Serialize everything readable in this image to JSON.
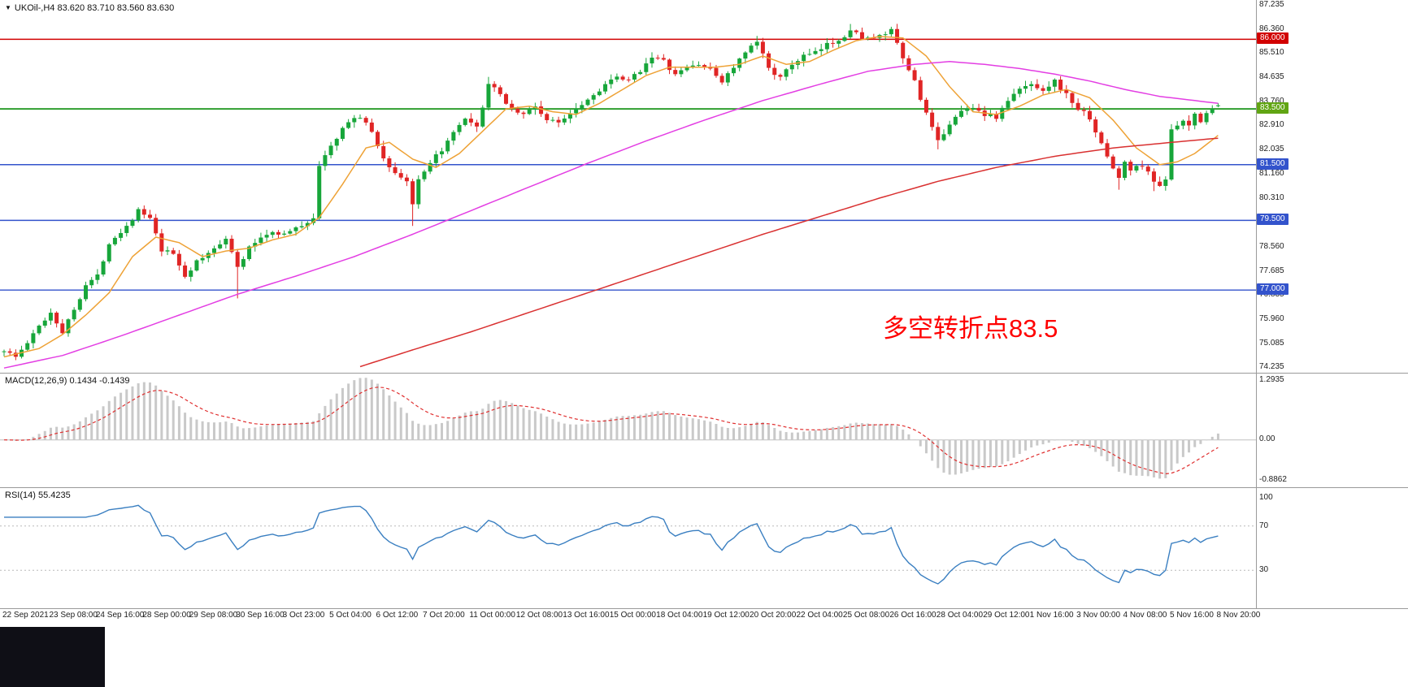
{
  "header": {
    "collapse_icon": "▼",
    "symbol_line": "UKOil-,H4 83.620 83.710 83.560 83.630"
  },
  "main_chart": {
    "price_ticks": [
      "87.235",
      "86.360",
      "85.510",
      "84.635",
      "83.760",
      "82.910",
      "82.035",
      "81.160",
      "80.310",
      "78.560",
      "77.685",
      "76.835",
      "75.960",
      "75.085",
      "74.235"
    ],
    "annotation": {
      "text": "多空转折点83.5",
      "color": "#ff0000"
    }
  },
  "macd_panel": {
    "label": "MACD(12,26,9) 0.1434 -0.1439",
    "axis_labels": [
      "1.2935",
      "0.00",
      "-0.8862"
    ]
  },
  "rsi_panel": {
    "label": "RSI(14) 55.4235",
    "axis_labels": [
      "100",
      "70",
      "30"
    ]
  },
  "time_axis": {
    "labels": [
      "22 Sep 2021",
      "23 Sep 08:00",
      "24 Sep 16:00",
      "28 Sep 00:00",
      "29 Sep 08:00",
      "30 Sep 16:00",
      "3 Oct 23:00",
      "5 Oct 04:00",
      "6 Oct 12:00",
      "7 Oct 20:00",
      "11 Oct 00:00",
      "12 Oct 08:00",
      "13 Oct 16:00",
      "15 Oct 00:00",
      "18 Oct 04:00",
      "19 Oct 12:00",
      "20 Oct 20:00",
      "22 Oct 04:00",
      "25 Oct 08:00",
      "26 Oct 16:00",
      "28 Oct 04:00",
      "29 Oct 12:00",
      "1 Nov 16:00",
      "3 Nov 00:00",
      "4 Nov 08:00",
      "5 Nov 16:00",
      "8 Nov 20:00"
    ]
  },
  "chart_data": {
    "type": "candlestick",
    "symbol": "UKOil-",
    "timeframe": "H4",
    "ohlc_current": {
      "open": 83.62,
      "high": 83.71,
      "low": 83.56,
      "close": 83.63
    },
    "price_range": [
      74.235,
      87.235
    ],
    "candle_count": 209,
    "bars_per_time_label": 8,
    "price_path_anchors": [
      [
        0,
        74.85
      ],
      [
        2,
        74.6
      ],
      [
        4,
        75.1
      ],
      [
        6,
        75.7
      ],
      [
        8,
        76.2
      ],
      [
        10,
        75.5
      ],
      [
        12,
        76.3
      ],
      [
        14,
        77.2
      ],
      [
        16,
        77.5
      ],
      [
        18,
        78.7
      ],
      [
        21,
        79.3
      ],
      [
        23,
        79.85
      ],
      [
        25,
        79.55
      ],
      [
        27,
        78.4
      ],
      [
        29,
        78.3
      ],
      [
        31,
        77.5
      ],
      [
        33,
        78.0
      ],
      [
        35,
        78.3
      ],
      [
        38,
        78.9
      ],
      [
        40,
        77.8
      ],
      [
        42,
        78.5
      ],
      [
        44,
        78.9
      ],
      [
        46,
        79.1
      ],
      [
        48,
        79.0
      ],
      [
        50,
        79.2
      ],
      [
        52,
        79.45
      ],
      [
        53,
        79.6
      ],
      [
        54,
        81.4
      ],
      [
        55,
        81.9
      ],
      [
        57,
        82.4
      ],
      [
        59,
        83.1
      ],
      [
        61,
        83.2
      ],
      [
        63,
        82.7
      ],
      [
        65,
        81.7
      ],
      [
        67,
        81.2
      ],
      [
        69,
        80.9
      ],
      [
        70,
        80.1
      ],
      [
        71,
        80.9
      ],
      [
        74,
        81.8
      ],
      [
        76,
        82.3
      ],
      [
        78,
        82.9
      ],
      [
        79,
        83.1
      ],
      [
        81,
        82.8
      ],
      [
        83,
        84.4
      ],
      [
        85,
        84.0
      ],
      [
        87,
        83.5
      ],
      [
        89,
        83.3
      ],
      [
        91,
        83.6
      ],
      [
        93,
        83.1
      ],
      [
        95,
        83.0
      ],
      [
        97,
        83.4
      ],
      [
        99,
        83.7
      ],
      [
        101,
        84.0
      ],
      [
        103,
        84.4
      ],
      [
        105,
        84.6
      ],
      [
        107,
        84.5
      ],
      [
        109,
        84.9
      ],
      [
        111,
        85.4
      ],
      [
        113,
        85.2
      ],
      [
        115,
        84.7
      ],
      [
        117,
        85.0
      ],
      [
        119,
        85.1
      ],
      [
        121,
        84.9
      ],
      [
        123,
        84.5
      ],
      [
        125,
        85.0
      ],
      [
        127,
        85.5
      ],
      [
        129,
        85.9
      ],
      [
        131,
        85.0
      ],
      [
        133,
        84.6
      ],
      [
        135,
        85.1
      ],
      [
        137,
        85.4
      ],
      [
        139,
        85.5
      ],
      [
        141,
        85.8
      ],
      [
        143,
        86.0
      ],
      [
        145,
        86.3
      ],
      [
        147,
        86.1
      ],
      [
        149,
        86.0
      ],
      [
        151,
        86.2
      ],
      [
        152,
        86.3
      ],
      [
        154,
        85.3
      ],
      [
        156,
        84.5
      ],
      [
        158,
        83.3
      ],
      [
        160,
        82.3
      ],
      [
        162,
        83.0
      ],
      [
        164,
        83.4
      ],
      [
        166,
        83.6
      ],
      [
        168,
        83.3
      ],
      [
        170,
        83.2
      ],
      [
        172,
        83.8
      ],
      [
        174,
        84.2
      ],
      [
        176,
        84.4
      ],
      [
        178,
        84.2
      ],
      [
        180,
        84.5
      ],
      [
        182,
        84.0
      ],
      [
        184,
        83.5
      ],
      [
        186,
        83.2
      ],
      [
        188,
        82.2
      ],
      [
        190,
        81.4
      ],
      [
        191,
        81.0
      ],
      [
        192,
        81.6
      ],
      [
        193,
        81.3
      ],
      [
        195,
        81.5
      ],
      [
        197,
        80.9
      ],
      [
        198,
        80.8
      ],
      [
        199,
        81.0
      ],
      [
        200,
        82.7
      ],
      [
        201,
        82.9
      ],
      [
        202,
        83.0
      ],
      [
        203,
        82.9
      ],
      [
        204,
        83.3
      ],
      [
        205,
        83.1
      ],
      [
        206,
        83.4
      ],
      [
        207,
        83.5
      ],
      [
        208,
        83.63
      ]
    ],
    "wick_overrides": [
      [
        40,
        "low",
        76.7
      ],
      [
        70,
        "low",
        79.3
      ],
      [
        83,
        "high",
        84.65
      ],
      [
        129,
        "high",
        86.12
      ],
      [
        145,
        "high",
        86.55
      ],
      [
        152,
        "high",
        86.45
      ],
      [
        160,
        "low",
        82.05
      ],
      [
        191,
        "low",
        80.6
      ],
      [
        197,
        "low",
        80.55
      ]
    ],
    "moving_averages": [
      {
        "name": "ma-fast-orange",
        "color": "#eea236",
        "anchors": [
          [
            0,
            74.6
          ],
          [
            6,
            74.9
          ],
          [
            10,
            75.4
          ],
          [
            14,
            76.1
          ],
          [
            18,
            76.9
          ],
          [
            22,
            78.2
          ],
          [
            26,
            78.9
          ],
          [
            30,
            78.7
          ],
          [
            34,
            78.2
          ],
          [
            38,
            78.4
          ],
          [
            42,
            78.5
          ],
          [
            46,
            78.8
          ],
          [
            50,
            79.0
          ],
          [
            54,
            79.6
          ],
          [
            58,
            80.8
          ],
          [
            62,
            82.1
          ],
          [
            66,
            82.3
          ],
          [
            70,
            81.7
          ],
          [
            74,
            81.4
          ],
          [
            78,
            81.9
          ],
          [
            82,
            82.7
          ],
          [
            86,
            83.5
          ],
          [
            90,
            83.6
          ],
          [
            94,
            83.4
          ],
          [
            98,
            83.3
          ],
          [
            102,
            83.7
          ],
          [
            106,
            84.2
          ],
          [
            110,
            84.7
          ],
          [
            114,
            85.0
          ],
          [
            118,
            85.0
          ],
          [
            122,
            85.0
          ],
          [
            126,
            85.1
          ],
          [
            130,
            85.4
          ],
          [
            134,
            85.1
          ],
          [
            138,
            85.2
          ],
          [
            142,
            85.6
          ],
          [
            146,
            85.95
          ],
          [
            150,
            86.1
          ],
          [
            154,
            86.05
          ],
          [
            158,
            85.4
          ],
          [
            162,
            84.3
          ],
          [
            166,
            83.4
          ],
          [
            170,
            83.3
          ],
          [
            174,
            83.6
          ],
          [
            178,
            84.0
          ],
          [
            182,
            84.2
          ],
          [
            186,
            83.9
          ],
          [
            190,
            83.1
          ],
          [
            194,
            82.1
          ],
          [
            198,
            81.5
          ],
          [
            201,
            81.6
          ],
          [
            204,
            81.9
          ],
          [
            208,
            82.55
          ]
        ]
      },
      {
        "name": "ma-medium-magenta",
        "color": "#e33ee3",
        "anchors": [
          [
            0,
            74.2
          ],
          [
            10,
            74.65
          ],
          [
            20,
            75.35
          ],
          [
            30,
            76.1
          ],
          [
            40,
            76.85
          ],
          [
            50,
            77.5
          ],
          [
            60,
            78.2
          ],
          [
            70,
            79.0
          ],
          [
            80,
            79.85
          ],
          [
            90,
            80.7
          ],
          [
            100,
            81.55
          ],
          [
            110,
            82.35
          ],
          [
            120,
            83.1
          ],
          [
            130,
            83.8
          ],
          [
            140,
            84.4
          ],
          [
            148,
            84.85
          ],
          [
            156,
            85.1
          ],
          [
            162,
            85.2
          ],
          [
            168,
            85.1
          ],
          [
            174,
            84.95
          ],
          [
            180,
            84.75
          ],
          [
            186,
            84.5
          ],
          [
            192,
            84.2
          ],
          [
            198,
            83.95
          ],
          [
            204,
            83.8
          ],
          [
            208,
            83.7
          ]
        ]
      },
      {
        "name": "ma-slow-red",
        "color": "#d93030",
        "anchors": [
          [
            61,
            74.25
          ],
          [
            70,
            74.85
          ],
          [
            80,
            75.5
          ],
          [
            90,
            76.2
          ],
          [
            100,
            76.9
          ],
          [
            110,
            77.6
          ],
          [
            120,
            78.3
          ],
          [
            130,
            79.0
          ],
          [
            140,
            79.65
          ],
          [
            150,
            80.3
          ],
          [
            160,
            80.9
          ],
          [
            170,
            81.4
          ],
          [
            180,
            81.8
          ],
          [
            190,
            82.1
          ],
          [
            200,
            82.3
          ],
          [
            208,
            82.45
          ]
        ]
      }
    ],
    "horizontal_lines": [
      {
        "price": 86.0,
        "label": "86.000",
        "color": "#d20000",
        "width": 1.4
      },
      {
        "price": 83.5,
        "label": "83.500",
        "color": "#2f9e2f",
        "width": 2,
        "badge_color": "#61a513"
      },
      {
        "price": 81.5,
        "label": "81.500",
        "color": "#3353cc",
        "width": 1.4
      },
      {
        "price": 79.5,
        "label": "79.500",
        "color": "#3353cc",
        "width": 1.4
      },
      {
        "price": 77.0,
        "label": "77.000",
        "color": "#3353cc",
        "width": 1.4
      }
    ],
    "macd": {
      "params": [
        12,
        26,
        9
      ],
      "value": 0.1434,
      "signal": -0.1439,
      "range": [
        -0.8862,
        1.2935
      ]
    },
    "rsi": {
      "period": 14,
      "value": 55.4235,
      "levels": [
        70,
        30
      ],
      "range": [
        0,
        100
      ]
    },
    "colors": {
      "candle_up": "#17a63a",
      "candle_down": "#e02525",
      "macd_histogram": "#c9c9c9",
      "macd_signal": "#e03030",
      "rsi_line": "#3a7fc1"
    }
  }
}
